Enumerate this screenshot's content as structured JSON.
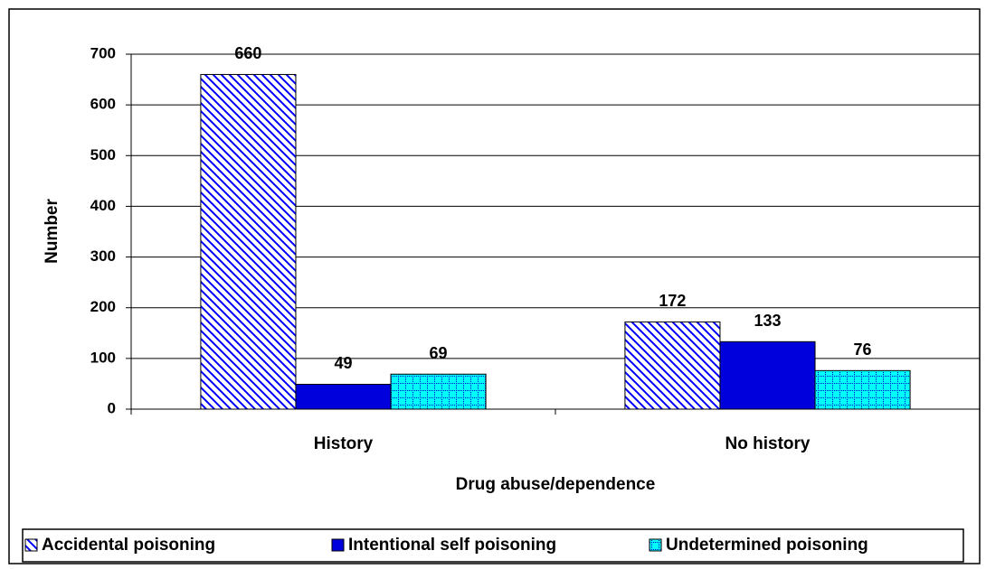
{
  "chart_data": {
    "type": "bar",
    "x_label": "Drug abuse/dependence",
    "y_label": "Number",
    "categories": [
      "History",
      "No history"
    ],
    "series": [
      {
        "name": "Accidental poisoning",
        "color": "#0000ff",
        "pattern": "diagonal",
        "values": [
          660,
          172
        ]
      },
      {
        "name": "Intentional self poisoning",
        "color": "#0000dd",
        "pattern": "solid",
        "values": [
          49,
          133
        ]
      },
      {
        "name": "Undetermined poisoning",
        "color": "#00ffff",
        "pattern": "grid",
        "values": [
          69,
          76
        ]
      }
    ],
    "ylim": [
      0,
      700
    ],
    "yticks": [
      0,
      100,
      200,
      300,
      400,
      500,
      600,
      700
    ],
    "grid": true,
    "legend": "bottom"
  }
}
